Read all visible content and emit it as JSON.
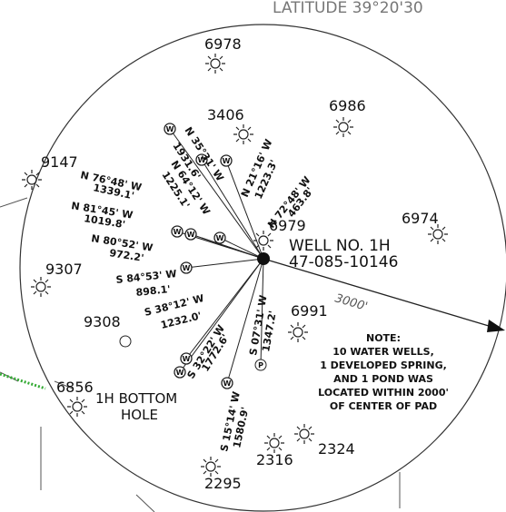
{
  "header": {
    "latitude": "LATITUDE 39°20'30"
  },
  "wells": [
    {
      "label": "6978"
    },
    {
      "label": "3406"
    },
    {
      "label": "6986"
    },
    {
      "label": "9147"
    },
    {
      "label": "6974"
    },
    {
      "label": "9307"
    },
    {
      "label": "9308"
    },
    {
      "label": "6991"
    },
    {
      "label": "6856"
    },
    {
      "label": "2316"
    },
    {
      "label": "2324"
    },
    {
      "label": "2295"
    },
    {
      "label": "6979"
    }
  ],
  "well": {
    "name": "WELL NO. 1H",
    "api": "47-085-10146"
  },
  "bearings": [
    {
      "direction": "N 35°31' W",
      "distance": "1931.6'"
    },
    {
      "direction": "N 64°12' W",
      "distance": "1225.1'"
    },
    {
      "direction": "N 21°16' W",
      "distance": "1223.3'"
    },
    {
      "direction": "N 72°48' W",
      "distance": "463.8'"
    },
    {
      "direction": "N 76°48' W",
      "distance": "1339.1'"
    },
    {
      "direction": "N 81°45' W",
      "distance": "1019.8'"
    },
    {
      "direction": "N 80°52' W",
      "distance": "972.2'"
    },
    {
      "direction": "S 84°53' W",
      "distance": "898.1'"
    },
    {
      "direction": "S 38°12' W",
      "distance": "1232.0'"
    },
    {
      "direction": "S 32°22' W",
      "distance": "1772.6'"
    },
    {
      "direction": "S 07°31' W",
      "distance": "1347.2'"
    },
    {
      "direction": "S 15°14' W",
      "distance": "1580.9'"
    }
  ],
  "radius_label": "3000'",
  "bottom_hole": [
    "1H BOTTOM",
    "HOLE"
  ],
  "note": [
    "NOTE:",
    "10 WATER WELLS,",
    "1 DEVELOPED SPRING,",
    "AND 1 POND WAS",
    "LOCATED WITHIN 2000'",
    "OF CENTER OF PAD"
  ]
}
